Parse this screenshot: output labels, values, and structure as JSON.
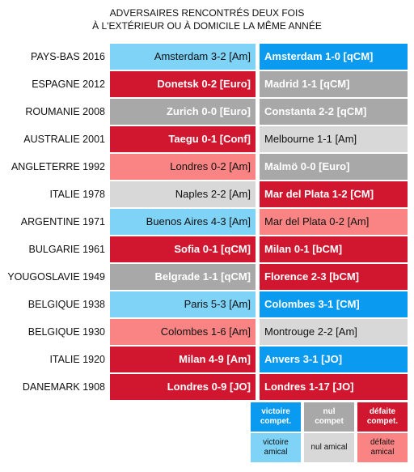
{
  "title_line1": "ADVERSAIRES RENCONTRÉS DEUX FOIS",
  "title_line2": "À L'EXTÉRIEUR OU À DOMICILE LA MÊME ANNÉE",
  "rows": [
    {
      "country": "PAYS-BAS 2016",
      "home": "Amsterdam 3-2 [Am]",
      "away": "Amsterdam 1-0 [qCM]"
    },
    {
      "country": "ESPAGNE 2012",
      "home": "Donetsk 0-2 [Euro]",
      "away": "Madrid 1-1 [qCM]"
    },
    {
      "country": "ROUMANIE 2008",
      "home": "Zurich 0-0 [Euro]",
      "away": "Constanta 2-2 [qCM]"
    },
    {
      "country": "AUSTRALIE 2001",
      "home": "Taegu 0-1 [Conf]",
      "away": "Melbourne 1-1 [Am]"
    },
    {
      "country": "ANGLETERRE 1992",
      "home": "Londres 0-2 [Am]",
      "away": "Malmö 0-0 [Euro]"
    },
    {
      "country": "ITALIE 1978",
      "home": "Naples 2-2 [Am]",
      "away": "Mar del Plata 1-2 [CM]"
    },
    {
      "country": "ARGENTINE 1971",
      "home": "Buenos Aires 4-3 [Am]",
      "away": "Mar del Plata 0-2 [Am]"
    },
    {
      "country": "BULGARIE 1961",
      "home": "Sofia 0-1 [qCM]",
      "away": "Milan 0-1 [bCM]"
    },
    {
      "country": "YOUGOSLAVIE 1949",
      "home": "Belgrade 1-1 [qCM]",
      "away": "Florence 2-3 [bCM]"
    },
    {
      "country": "BELGIQUE 1938",
      "home": "Paris 5-3 [Am]",
      "away": "Colombes 3-1 [CM]"
    },
    {
      "country": "BELGIQUE 1930",
      "home": "Colombes 1-6 [Am]",
      "away": "Montrouge 2-2 [Am]"
    },
    {
      "country": "ITALIE 1920",
      "home": "Milan 4-9 [Am]",
      "away": "Anvers 3-1 [JO]"
    },
    {
      "country": "DANEMARK 1908",
      "home": "Londres 0-9 [JO]",
      "away": "Londres 1-17 [JO]"
    }
  ],
  "legend": {
    "victoire_compet_1": "victoire",
    "victoire_compet_2": "compet.",
    "nul_compet_1": "nul",
    "nul_compet_2": "compet",
    "defaite_compet_1": "défaite",
    "defaite_compet_2": "compet.",
    "victoire_amical_1": "victoire",
    "victoire_amical_2": "amical",
    "nul_amical": "nul amical",
    "defaite_amical_1": "défaite",
    "defaite_amical_2": "amical"
  },
  "colors": {
    "victoire_compet": "#0a9bf0",
    "victoire_amical": "#7fd3f7",
    "nul_compet": "#a8a8a8",
    "nul_amical": "#d8d8d8",
    "defaite_compet": "#d0172f",
    "defaite_amical": "#fa8484"
  }
}
